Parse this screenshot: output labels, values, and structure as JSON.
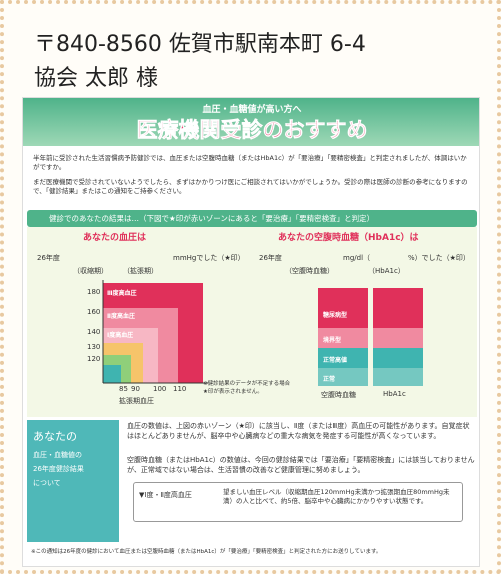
{
  "address": {
    "postal": "〒840-8560 佐賀市駅南本町 6-4",
    "name": "協会 太郎 様"
  },
  "header": {
    "subtitle": "血圧・血糖値が高い方へ",
    "title": "医療機関受診のおすすめ"
  },
  "intro": [
    "半年前に受診された生活習慣病予防健診では、血圧または空腹時血糖（またはHbA1c）が「要治療」「要精密検査」と判定されましたが、体調はいかがですか。",
    "まだ医療機関で受診されていないようでしたら、まずはかかりつけ医にご相談されてはいかがでしょうか。受診の際は医師の診断の参考になりますので、「健診結果」またはこの通知をご持参ください。"
  ],
  "results_bar": "健診でのあなたの結果は…（下図で★印が赤いゾーンにあると「要治療」「要精密検査」と判定）",
  "blood_pressure": {
    "heading": "あなたの血圧は",
    "year": "26年度",
    "unit": "mmHgでした（★印）",
    "systolic": "（収縮期）",
    "diastolic": "（拡張期）",
    "zones": [
      "Ⅲ度高血圧",
      "Ⅱ度高血圧",
      "Ⅰ度高血圧"
    ],
    "yticks": [
      "180",
      "160",
      "140",
      "130",
      "120"
    ],
    "xticks": [
      "85",
      "90",
      "100",
      "110"
    ],
    "x_label": "拡張期血圧",
    "note": "※健診結果のデータが不足する場合★印が表示されません。"
  },
  "glucose": {
    "heading": "あなたの空腹時血糖（HbA1c）は",
    "year": "26年度",
    "unit1": "mg/dl（",
    "unit2": "%）でした（★印）",
    "fasting": "（空腹時血糖）",
    "hba1c": "（HbA1c）",
    "zones": [
      "糖尿病型",
      "境界型",
      "正常高値",
      "正常"
    ],
    "x_labels": [
      "空腹時血糖",
      "HbA1c"
    ]
  },
  "summary": {
    "label": [
      "あなたの",
      "血圧・血糖値の",
      "26年度健診結果",
      "について"
    ],
    "items": [
      "血圧の数値は、上図の赤いゾーン（★印）に該当し、Ⅱ度（またはⅢ度）高血圧の可能性があります。自覚症状はほとんどありませんが、脳卒中や心臓病などの重大な病気を発症する可能性が高くなっています。",
      "空腹時血糖（またはHbA1c）の数値は、今回の健診結果では「要治療」「要精密検査」には該当しておりませんが、正常域ではない場合は、生活習慣の改善など健康管理に努めましょう。"
    ],
    "sub_label": "▼Ⅰ度・Ⅱ度高血圧",
    "sub_text": "望ましい血圧レベル（収縮期血圧120mmHg未満かつ拡張期血圧80mmHg未満）の人と比べて、約5倍、脳卒中や心臓病にかかりやすい状態です。"
  },
  "footer": "※この通知は26年度の健診において血圧または空腹時血糖（またはHbA1c）が「要治療」「要精密検査」と判定された方にお送りしています。"
}
